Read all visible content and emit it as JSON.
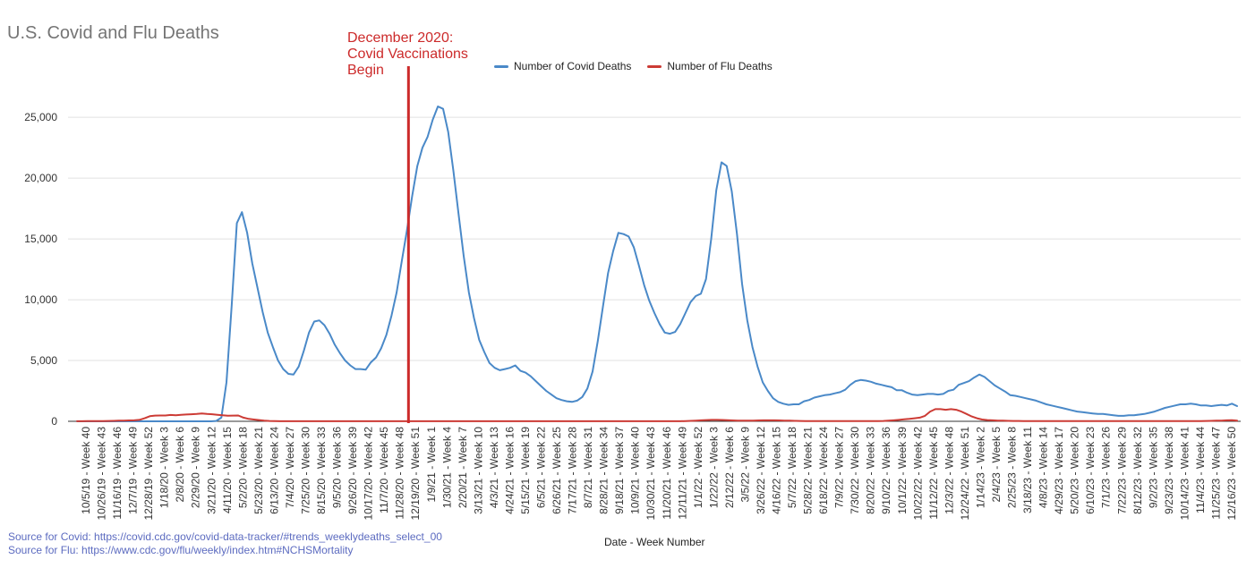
{
  "colors": {
    "covid": "#4a89c8",
    "flu": "#cc3b35",
    "annotation": "#cc2a2a",
    "grid": "#e0e0e0",
    "axis_text": "#333333",
    "source_text": "#5c6bc0"
  },
  "annotation": {
    "text": "December 2020:\nCovid Vaccinations\nBegin",
    "at_label": "12/19/20 - Week 51"
  },
  "sources": {
    "covid": "Source for Covid: https://covid.cdc.gov/covid-data-tracker/#trends_weeklydeaths_select_00",
    "flu": "Source for Flu: https://www.cdc.gov/flu/weekly/index.htm#NCHSMortality"
  },
  "chart_data": {
    "type": "line",
    "title": "U.S. Covid and Flu Deaths",
    "xlabel": "Date - Week Number",
    "ylabel": "",
    "ylim": [
      0,
      27000
    ],
    "yticks": [
      0,
      5000,
      10000,
      15000,
      20000,
      25000
    ],
    "ytick_labels": [
      "0",
      "5,000",
      "10,000",
      "15,000",
      "20,000",
      "25,000"
    ],
    "grid": true,
    "legend_position": "top",
    "x_tick_labels": [
      "10/5/19 - Week 40",
      "10/26/19 - Week 43",
      "11/16/19 - Week 46",
      "12/7/19 - Week 49",
      "12/28/19 - Week 52",
      "1/18/20 - Week 3",
      "2/8/20 - Week 6",
      "2/29/20 - Week 9",
      "3/21/20 - Week 12",
      "4/11/20 - Week 15",
      "5/2/20 - Week 18",
      "5/23/20 - Week 21",
      "6/13/20 - Week 24",
      "7/4/20 - Week 27",
      "7/25/20 - Week 30",
      "8/15/20 - Week 33",
      "9/5/20 - Week 36",
      "9/26/20 - Week 39",
      "10/17/20 - Week 42",
      "11/7/20 - Week 45",
      "11/28/20 - Week 48",
      "12/19/20 - Week 51",
      "1/9/21 - Week 1",
      "1/30/21 - Week 4",
      "2/20/21 - Week 7",
      "3/13/21 - Week 10",
      "4/3/21 - Week 13",
      "4/24/21 - Week 16",
      "5/15/21 - Week 19",
      "6/5/21 - Week 22",
      "6/26/21 - Week 25",
      "7/17/21 - Week 28",
      "8/7/21 - Week 31",
      "8/28/21 - Week 34",
      "9/18/21 - Week 37",
      "10/9/21 - Week 40",
      "10/30/21 - Week 43",
      "11/20/21 - Week 46",
      "12/11/21 - Week 49",
      "1/1/22 - Week 52",
      "1/22/22 - Week 3",
      "2/12/22 - Week 6",
      "3/5/22 - Week 9",
      "3/26/22 - Week 12",
      "4/16/22 - Week 15",
      "5/7/22 - Week 18",
      "5/28/22 - Week 21",
      "6/18/22 - Week 24",
      "7/9/22 - Week 27",
      "7/30/22 - Week 30",
      "8/20/22 - Week 33",
      "9/10/22 - Week 36",
      "10/1/22 - Week 39",
      "10/22/22 - Week 42",
      "11/12/22 - Week 45",
      "12/3/22 - Week 48",
      "12/24/22 - Week 51",
      "1/14/23 - Week 2",
      "2/4/23 - Week 5",
      "2/25/23 - Week 8",
      "3/18/23 - Week 11",
      "4/8/23 - Week 14",
      "4/29/23 - Week 17",
      "5/20/23 - Week 20",
      "6/10/23 - Week 23",
      "7/1/23 - Week 26",
      "7/22/23 - Week 29",
      "8/12/23 - Week 32",
      "9/2/23 - Week 35",
      "9/23/23 - Week 38",
      "10/14/23 - Week 41",
      "11/4/23 - Week 44",
      "11/25/23 - Week 47",
      "12/16/23 - Week 50"
    ],
    "series": [
      {
        "name": "Number of Covid Deaths",
        "color": "#4a89c8",
        "values": [
          0,
          0,
          0,
          0,
          0,
          0,
          0,
          0,
          0,
          0,
          0,
          0,
          0,
          0,
          0,
          0,
          0,
          0,
          0,
          0,
          0,
          0,
          0,
          0,
          0,
          0,
          0,
          30,
          300,
          3200,
          9500,
          16300,
          17200,
          15500,
          13000,
          11000,
          9000,
          7300,
          6100,
          5000,
          4300,
          3900,
          3850,
          4500,
          5800,
          7300,
          8200,
          8300,
          7900,
          7200,
          6300,
          5600,
          5000,
          4600,
          4300,
          4300,
          4250,
          4850,
          5250,
          6000,
          7100,
          8700,
          10600,
          13200,
          15700,
          18500,
          21000,
          22500,
          23400,
          24800,
          25900,
          25700,
          23800,
          20600,
          17100,
          13600,
          10600,
          8500,
          6700,
          5700,
          4800,
          4400,
          4200,
          4300,
          4400,
          4600,
          4150,
          4000,
          3700,
          3300,
          2900,
          2500,
          2200,
          1900,
          1750,
          1650,
          1600,
          1700,
          2000,
          2700,
          4100,
          6600,
          9400,
          12200,
          14000,
          15500,
          15400,
          15200,
          14300,
          12800,
          11200,
          9900,
          8900,
          8000,
          7300,
          7200,
          7350,
          8000,
          8900,
          9800,
          10300,
          10500,
          11700,
          15000,
          19000,
          21300,
          21000,
          18900,
          15400,
          11300,
          8300,
          6100,
          4500,
          3200,
          2500,
          1900,
          1600,
          1450,
          1350,
          1400,
          1400,
          1650,
          1750,
          1950,
          2050,
          2150,
          2200,
          2300,
          2400,
          2600,
          3000,
          3300,
          3400,
          3350,
          3250,
          3100,
          3000,
          2900,
          2800,
          2550,
          2550,
          2350,
          2200,
          2150,
          2200,
          2250,
          2250,
          2200,
          2250,
          2500,
          2600,
          3000,
          3150,
          3300,
          3600,
          3850,
          3650,
          3300,
          2950,
          2700,
          2450,
          2150,
          2100,
          2000,
          1900,
          1800,
          1700,
          1550,
          1400,
          1300,
          1200,
          1100,
          1000,
          900,
          800,
          750,
          700,
          650,
          600,
          600,
          550,
          500,
          450,
          450,
          500,
          500,
          550,
          600,
          700,
          800,
          950,
          1100,
          1200,
          1300,
          1400,
          1400,
          1450,
          1400,
          1300,
          1300,
          1250,
          1300,
          1350,
          1300,
          1450,
          1250
        ]
      },
      {
        "name": "Number of Flu Deaths",
        "color": "#cc3b35",
        "values": [
          10,
          10,
          15,
          20,
          20,
          25,
          30,
          40,
          50,
          60,
          70,
          80,
          120,
          250,
          420,
          470,
          480,
          480,
          520,
          500,
          540,
          560,
          580,
          600,
          650,
          600,
          580,
          540,
          500,
          460,
          470,
          480,
          300,
          200,
          150,
          100,
          50,
          30,
          20,
          10,
          5,
          5,
          5,
          5,
          5,
          5,
          5,
          5,
          5,
          5,
          5,
          5,
          5,
          5,
          5,
          5,
          5,
          5,
          5,
          5,
          5,
          5,
          5,
          5,
          5,
          5,
          5,
          5,
          5,
          5,
          5,
          5,
          5,
          5,
          5,
          5,
          5,
          5,
          5,
          5,
          5,
          5,
          5,
          5,
          5,
          5,
          5,
          5,
          5,
          5,
          5,
          5,
          5,
          5,
          5,
          5,
          5,
          5,
          5,
          5,
          5,
          5,
          5,
          5,
          5,
          5,
          5,
          5,
          5,
          5,
          5,
          5,
          5,
          5,
          5,
          5,
          10,
          20,
          40,
          60,
          80,
          100,
          120,
          120,
          110,
          90,
          70,
          60,
          50,
          50,
          60,
          70,
          80,
          80,
          80,
          70,
          60,
          50,
          40,
          30,
          20,
          20,
          20,
          20,
          20,
          20,
          20,
          20,
          20,
          20,
          20,
          20,
          20,
          20,
          20,
          30,
          50,
          80,
          120,
          160,
          200,
          250,
          300,
          450,
          800,
          1000,
          1000,
          950,
          1000,
          950,
          800,
          600,
          400,
          250,
          150,
          100,
          80,
          60,
          50,
          40,
          30,
          30,
          25,
          20,
          20,
          20,
          20,
          20,
          20,
          20,
          20,
          20,
          20,
          20,
          20,
          20,
          20,
          20,
          20,
          20,
          20,
          20,
          20,
          20,
          20,
          20,
          20,
          20,
          20,
          20,
          20,
          20,
          20,
          20,
          20,
          20,
          25,
          30,
          40,
          50,
          60,
          80,
          90,
          60
        ]
      }
    ]
  }
}
